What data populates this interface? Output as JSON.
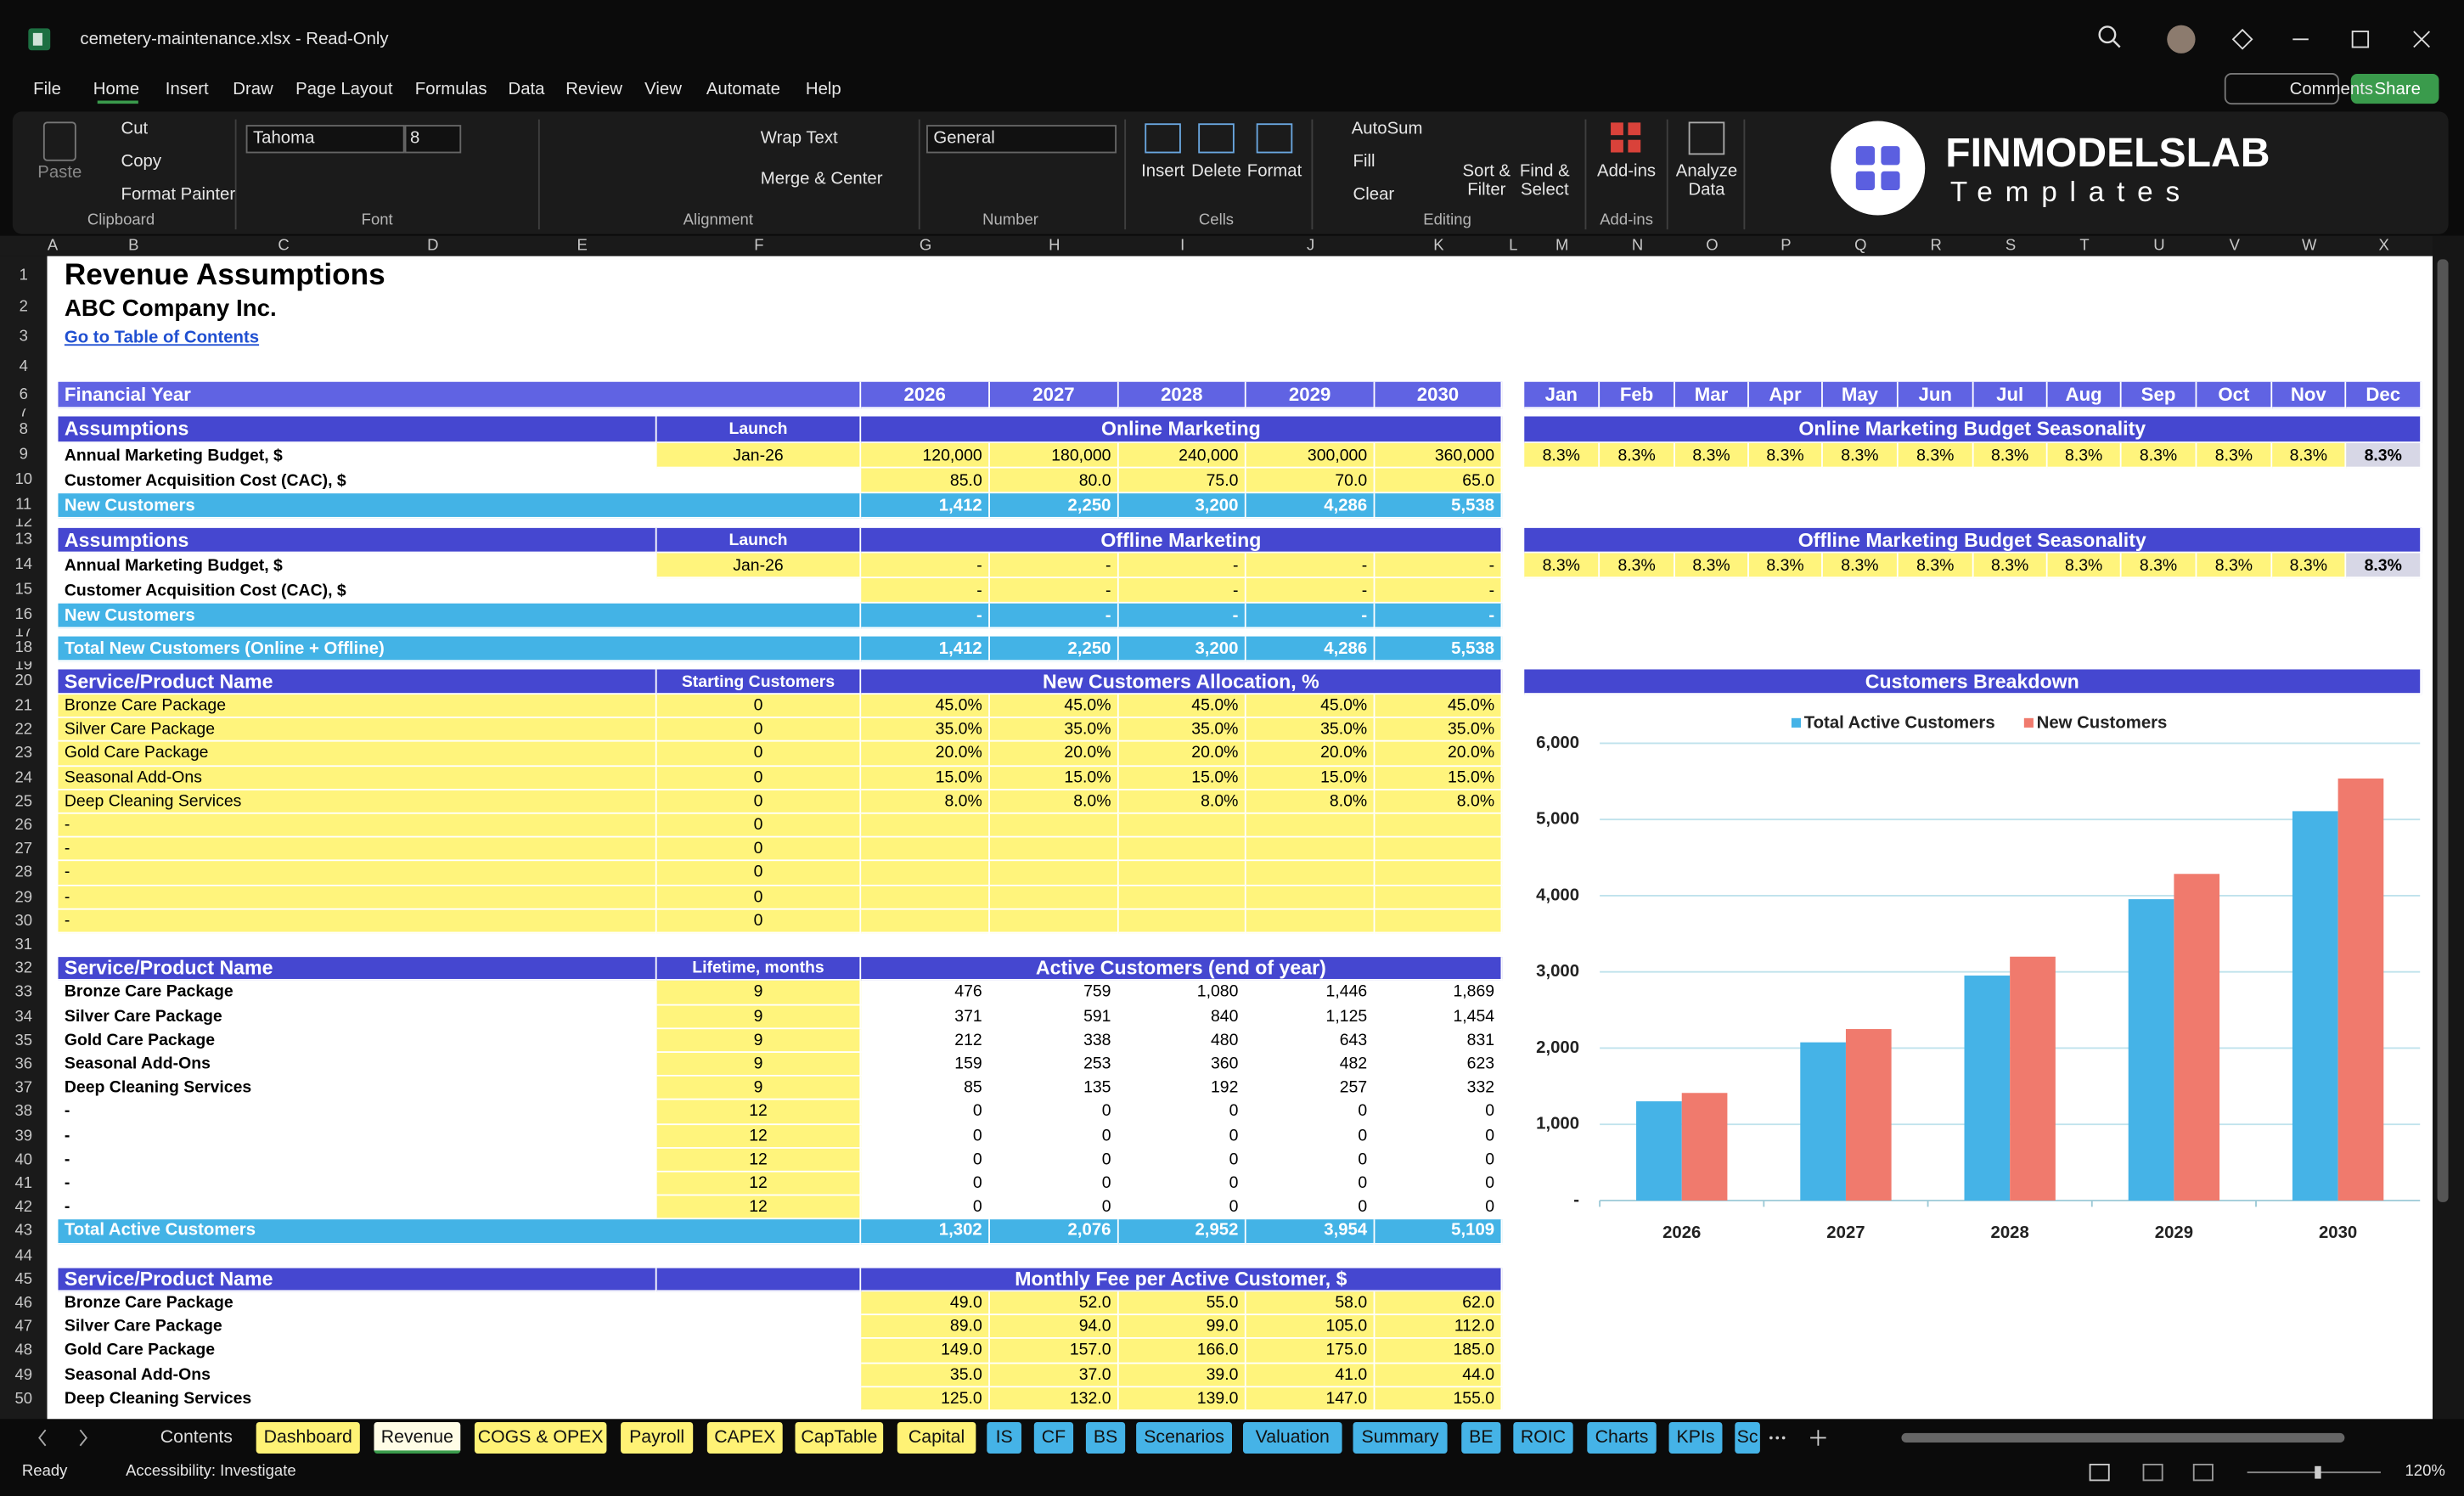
{
  "window": {
    "title": "cemetery-maintenance.xlsx  -  Read-Only"
  },
  "menu": [
    "File",
    "Home",
    "Insert",
    "Draw",
    "Page Layout",
    "Formulas",
    "Data",
    "Review",
    "View",
    "Automate",
    "Help"
  ],
  "menu_buttons": {
    "comments": "Comments",
    "share": "Share"
  },
  "ribbon": {
    "clipboard": {
      "label": "Clipboard",
      "paste": "Paste",
      "cut": "Cut",
      "copy": "Copy",
      "format_painter": "Format Painter"
    },
    "font": {
      "label": "Font",
      "name": "Tahoma",
      "size": "8"
    },
    "alignment": {
      "label": "Alignment",
      "wrap": "Wrap Text",
      "merge": "Merge & Center"
    },
    "number": {
      "label": "Number",
      "format": "General"
    },
    "cells": {
      "label": "Cells",
      "insert": "Insert",
      "delete": "Delete",
      "format": "Format"
    },
    "editing": {
      "label": "Editing",
      "autosum": "AutoSum",
      "fill": "Fill",
      "clear": "Clear",
      "sort": "Sort & Filter",
      "find": "Find & Select"
    },
    "addins": {
      "label": "Add-ins",
      "button": "Add-ins"
    },
    "analyze": "Analyze Data"
  },
  "logo": {
    "brand": "FINMODELSLAB",
    "tagline": "Templates"
  },
  "columns": [
    "A",
    "B",
    "C",
    "D",
    "E",
    "F",
    "G",
    "H",
    "I",
    "J",
    "K",
    "L",
    "M",
    "N",
    "O",
    "P",
    "Q",
    "R",
    "S",
    "T",
    "U",
    "V",
    "W",
    "X"
  ],
  "row_numbers": [
    1,
    2,
    3,
    4,
    6,
    7,
    8,
    9,
    10,
    11,
    12,
    13,
    14,
    15,
    16,
    17,
    18,
    19,
    20,
    21,
    22,
    23,
    24,
    25,
    26,
    27,
    28,
    29,
    30,
    31,
    32,
    33,
    34,
    35,
    36,
    37,
    38,
    39,
    40,
    41,
    42,
    43,
    44,
    45,
    46,
    47,
    48,
    49,
    50
  ],
  "sheet": {
    "title": "Revenue Assumptions",
    "company": "ABC Company Inc.",
    "link": "Go to Table of Contents",
    "header": {
      "label": "Financial Year",
      "years": [
        "2026",
        "2027",
        "2028",
        "2029",
        "2030"
      ],
      "months": [
        "Jan",
        "Feb",
        "Mar",
        "Apr",
        "May",
        "Jun",
        "Jul",
        "Aug",
        "Sep",
        "Oct",
        "Nov",
        "Dec"
      ]
    },
    "online": {
      "heading": "Assumptions",
      "launch_heading": "Launch",
      "group": "Online Marketing",
      "seasonality_title": "Online Marketing Budget Seasonality",
      "budget": {
        "label": "Annual Marketing Budget, $",
        "launch": "Jan-26",
        "values": [
          "120,000",
          "180,000",
          "240,000",
          "300,000",
          "360,000"
        ]
      },
      "cac": {
        "label": "Customer Acquisition Cost (CAC), $",
        "values": [
          "85.0",
          "80.0",
          "75.0",
          "70.0",
          "65.0"
        ]
      },
      "new": {
        "label": "New Customers",
        "values": [
          "1,412",
          "2,250",
          "3,200",
          "4,286",
          "5,538"
        ]
      },
      "seasonality": [
        "8.3%",
        "8.3%",
        "8.3%",
        "8.3%",
        "8.3%",
        "8.3%",
        "8.3%",
        "8.3%",
        "8.3%",
        "8.3%",
        "8.3%",
        "8.3%"
      ]
    },
    "offline": {
      "heading": "Assumptions",
      "launch_heading": "Launch",
      "group": "Offline Marketing",
      "seasonality_title": "Offline Marketing Budget Seasonality",
      "budget": {
        "label": "Annual Marketing Budget, $",
        "launch": "Jan-26",
        "values": [
          "-",
          "-",
          "-",
          "-",
          "-"
        ]
      },
      "cac": {
        "label": "Customer Acquisition Cost (CAC), $",
        "values": [
          "-",
          "-",
          "-",
          "-",
          "-"
        ]
      },
      "new": {
        "label": "New Customers",
        "values": [
          "-",
          "-",
          "-",
          "-",
          "-"
        ]
      },
      "seasonality": [
        "8.3%",
        "8.3%",
        "8.3%",
        "8.3%",
        "8.3%",
        "8.3%",
        "8.3%",
        "8.3%",
        "8.3%",
        "8.3%",
        "8.3%",
        "8.3%"
      ]
    },
    "total_new": {
      "label": "Total New Customers (Online + Offline)",
      "values": [
        "1,412",
        "2,250",
        "3,200",
        "4,286",
        "5,538"
      ]
    },
    "allocation": {
      "heading": "Service/Product Name",
      "sub": "Starting Customers",
      "group": "New Customers Allocation, %",
      "rows": [
        {
          "name": "Bronze Care Package",
          "start": "0",
          "values": [
            "45.0%",
            "45.0%",
            "45.0%",
            "45.0%",
            "45.0%"
          ]
        },
        {
          "name": "Silver Care Package",
          "start": "0",
          "values": [
            "35.0%",
            "35.0%",
            "35.0%",
            "35.0%",
            "35.0%"
          ]
        },
        {
          "name": "Gold Care Package",
          "start": "0",
          "values": [
            "20.0%",
            "20.0%",
            "20.0%",
            "20.0%",
            "20.0%"
          ]
        },
        {
          "name": "Seasonal Add-Ons",
          "start": "0",
          "values": [
            "15.0%",
            "15.0%",
            "15.0%",
            "15.0%",
            "15.0%"
          ]
        },
        {
          "name": "Deep Cleaning Services",
          "start": "0",
          "values": [
            "8.0%",
            "8.0%",
            "8.0%",
            "8.0%",
            "8.0%"
          ]
        },
        {
          "name": "-",
          "start": "0",
          "values": []
        },
        {
          "name": "-",
          "start": "0",
          "values": []
        },
        {
          "name": "-",
          "start": "0",
          "values": []
        },
        {
          "name": "-",
          "start": "0",
          "values": []
        },
        {
          "name": "-",
          "start": "0",
          "values": []
        }
      ]
    },
    "active": {
      "heading": "Service/Product Name",
      "sub": "Lifetime, months",
      "group": "Active Customers (end of year)",
      "rows": [
        {
          "name": "Bronze Care Package",
          "lifetime": "9",
          "values": [
            "476",
            "759",
            "1,080",
            "1,446",
            "1,869"
          ]
        },
        {
          "name": "Silver Care Package",
          "lifetime": "9",
          "values": [
            "371",
            "591",
            "840",
            "1,125",
            "1,454"
          ]
        },
        {
          "name": "Gold Care Package",
          "lifetime": "9",
          "values": [
            "212",
            "338",
            "480",
            "643",
            "831"
          ]
        },
        {
          "name": "Seasonal Add-Ons",
          "lifetime": "9",
          "values": [
            "159",
            "253",
            "360",
            "482",
            "623"
          ]
        },
        {
          "name": "Deep Cleaning Services",
          "lifetime": "9",
          "values": [
            "85",
            "135",
            "192",
            "257",
            "332"
          ]
        },
        {
          "name": "-",
          "lifetime": "12",
          "values": [
            "0",
            "0",
            "0",
            "0",
            "0"
          ]
        },
        {
          "name": "-",
          "lifetime": "12",
          "values": [
            "0",
            "0",
            "0",
            "0",
            "0"
          ]
        },
        {
          "name": "-",
          "lifetime": "12",
          "values": [
            "0",
            "0",
            "0",
            "0",
            "0"
          ]
        },
        {
          "name": "-",
          "lifetime": "12",
          "values": [
            "0",
            "0",
            "0",
            "0",
            "0"
          ]
        },
        {
          "name": "-",
          "lifetime": "12",
          "values": [
            "0",
            "0",
            "0",
            "0",
            "0"
          ]
        }
      ],
      "total": {
        "label": "Total Active Customers",
        "values": [
          "1,302",
          "2,076",
          "2,952",
          "3,954",
          "5,109"
        ]
      }
    },
    "fees": {
      "heading": "Service/Product Name",
      "group": "Monthly Fee per Active Customer, $",
      "rows": [
        {
          "name": "Bronze Care Package",
          "values": [
            "49.0",
            "52.0",
            "55.0",
            "58.0",
            "62.0"
          ]
        },
        {
          "name": "Silver Care Package",
          "values": [
            "89.0",
            "94.0",
            "99.0",
            "105.0",
            "112.0"
          ]
        },
        {
          "name": "Gold Care Package",
          "values": [
            "149.0",
            "157.0",
            "166.0",
            "175.0",
            "185.0"
          ]
        },
        {
          "name": "Seasonal Add-Ons",
          "values": [
            "35.0",
            "37.0",
            "39.0",
            "41.0",
            "44.0"
          ]
        },
        {
          "name": "Deep Cleaning Services",
          "values": [
            "125.0",
            "132.0",
            "139.0",
            "147.0",
            "155.0"
          ]
        }
      ]
    }
  },
  "chart_data": {
    "type": "bar",
    "title": "Customers Breakdown",
    "categories": [
      "2026",
      "2027",
      "2028",
      "2029",
      "2030"
    ],
    "series": [
      {
        "name": "Total Active Customers",
        "color": "#45b3e7",
        "values": [
          1302,
          2076,
          2952,
          3954,
          5109
        ]
      },
      {
        "name": "New Customers",
        "color": "#f07a6d",
        "values": [
          1412,
          2250,
          3200,
          4286,
          5538
        ]
      }
    ],
    "ylim": [
      0,
      6000
    ],
    "yticks": [
      {
        "value": 0,
        "label": "-"
      },
      {
        "value": 1000,
        "label": "1,000"
      },
      {
        "value": 2000,
        "label": "2,000"
      },
      {
        "value": 3000,
        "label": "3,000"
      },
      {
        "value": 4000,
        "label": "4,000"
      },
      {
        "value": 5000,
        "label": "5,000"
      },
      {
        "value": 6000,
        "label": "6,000"
      }
    ],
    "grid": true
  },
  "tabs": [
    {
      "name": "Contents"
    },
    {
      "name": "Dashboard",
      "color": "#fff275"
    },
    {
      "name": "Revenue",
      "color": "#fff275",
      "active": true
    },
    {
      "name": "COGS & OPEX",
      "color": "#fff275"
    },
    {
      "name": "Payroll",
      "color": "#fff275"
    },
    {
      "name": "CAPEX",
      "color": "#fff275"
    },
    {
      "name": "CapTable",
      "color": "#fff275"
    },
    {
      "name": "Capital",
      "color": "#fff275"
    },
    {
      "name": "IS",
      "color": "#45b3e7"
    },
    {
      "name": "CF",
      "color": "#45b3e7"
    },
    {
      "name": "BS",
      "color": "#45b3e7"
    },
    {
      "name": "Scenarios",
      "color": "#45b3e7"
    },
    {
      "name": "Valuation",
      "color": "#45b3e7"
    },
    {
      "name": "Summary",
      "color": "#45b3e7"
    },
    {
      "name": "BE",
      "color": "#45b3e7"
    },
    {
      "name": "ROIC",
      "color": "#45b3e7"
    },
    {
      "name": "Charts",
      "color": "#45b3e7"
    },
    {
      "name": "KPIs",
      "color": "#45b3e7"
    },
    {
      "name": "Sc",
      "color": "#45b3e7"
    }
  ],
  "status": {
    "ready": "Ready",
    "accessibility": "Accessibility: Investigate",
    "zoom": "120%"
  }
}
